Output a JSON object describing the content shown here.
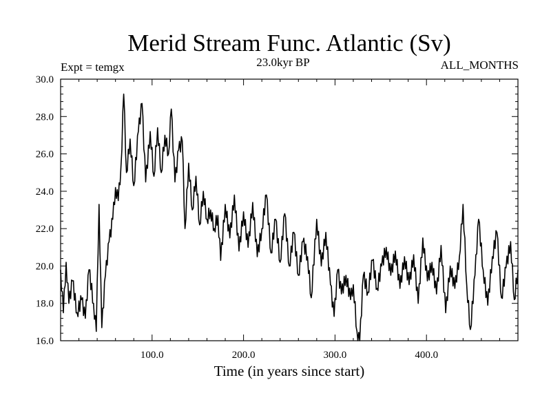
{
  "chart_data": {
    "type": "line",
    "title": "Merid Stream Func. Atlantic (Sv)",
    "subtitle_left": "Expt = temgx",
    "subtitle_center": "23.0kyr BP",
    "subtitle_right": "ALL_MONTHS",
    "xlabel": "Time (in years since start)",
    "ylabel": "",
    "xlim": [
      0,
      500
    ],
    "ylim": [
      16.0,
      30.0
    ],
    "x_ticks": [
      100,
      200,
      300,
      400
    ],
    "x_tick_labels": [
      "100.0",
      "200.0",
      "300.0",
      "400.0"
    ],
    "y_ticks": [
      16,
      18,
      20,
      22,
      24,
      26,
      28,
      30
    ],
    "y_tick_labels": [
      "16.0",
      "18.0",
      "20.0",
      "22.0",
      "24.0",
      "26.0",
      "28.0",
      "30.0"
    ],
    "grid": false,
    "line_color": "#000000",
    "anchors": [
      [
        0,
        19.8
      ],
      [
        3,
        17.5
      ],
      [
        6,
        20.2
      ],
      [
        9,
        18.0
      ],
      [
        13,
        19.2
      ],
      [
        18,
        17.5
      ],
      [
        23,
        18.2
      ],
      [
        27,
        17.2
      ],
      [
        31,
        19.8
      ],
      [
        36,
        18.0
      ],
      [
        39,
        16.5
      ],
      [
        42,
        23.3
      ],
      [
        45,
        16.7
      ],
      [
        49,
        19.5
      ],
      [
        53,
        21.3
      ],
      [
        57,
        22.5
      ],
      [
        60,
        24.2
      ],
      [
        63,
        23.5
      ],
      [
        66,
        25.3
      ],
      [
        69,
        29.2
      ],
      [
        72,
        25.0
      ],
      [
        76,
        26.8
      ],
      [
        80,
        24.3
      ],
      [
        85,
        27.2
      ],
      [
        89,
        28.7
      ],
      [
        93,
        24.5
      ],
      [
        98,
        27.2
      ],
      [
        102,
        24.8
      ],
      [
        106,
        27.4
      ],
      [
        110,
        25.0
      ],
      [
        114,
        27.0
      ],
      [
        118,
        26.0
      ],
      [
        121,
        28.4
      ],
      [
        125,
        24.5
      ],
      [
        129,
        26.2
      ],
      [
        133,
        26.7
      ],
      [
        136,
        22.0
      ],
      [
        140,
        25.5
      ],
      [
        144,
        23.0
      ],
      [
        148,
        24.8
      ],
      [
        152,
        22.2
      ],
      [
        156,
        24.0
      ],
      [
        160,
        22.5
      ],
      [
        164,
        23.0
      ],
      [
        168,
        22.0
      ],
      [
        172,
        22.7
      ],
      [
        175,
        20.3
      ],
      [
        180,
        23.3
      ],
      [
        185,
        21.5
      ],
      [
        190,
        23.8
      ],
      [
        195,
        20.8
      ],
      [
        200,
        22.9
      ],
      [
        205,
        21.0
      ],
      [
        210,
        23.4
      ],
      [
        215,
        20.5
      ],
      [
        220,
        22.0
      ],
      [
        225,
        23.8
      ],
      [
        230,
        20.7
      ],
      [
        235,
        22.5
      ],
      [
        240,
        20.2
      ],
      [
        245,
        22.8
      ],
      [
        250,
        20.0
      ],
      [
        255,
        21.8
      ],
      [
        260,
        19.5
      ],
      [
        265,
        21.3
      ],
      [
        270,
        20.5
      ],
      [
        274,
        18.3
      ],
      [
        280,
        22.5
      ],
      [
        285,
        20.0
      ],
      [
        290,
        21.8
      ],
      [
        295,
        19.0
      ],
      [
        299,
        17.3
      ],
      [
        303,
        19.8
      ],
      [
        307,
        18.5
      ],
      [
        312,
        19.5
      ],
      [
        317,
        18.2
      ],
      [
        320,
        19.0
      ],
      [
        324,
        16.5
      ],
      [
        327,
        15.9
      ],
      [
        331,
        19.5
      ],
      [
        336,
        18.6
      ],
      [
        341,
        20.3
      ],
      [
        346,
        18.8
      ],
      [
        351,
        20.0
      ],
      [
        356,
        21.0
      ],
      [
        361,
        19.5
      ],
      [
        366,
        20.8
      ],
      [
        371,
        18.8
      ],
      [
        376,
        20.5
      ],
      [
        381,
        19.0
      ],
      [
        386,
        20.6
      ],
      [
        391,
        18.0
      ],
      [
        396,
        21.5
      ],
      [
        401,
        19.2
      ],
      [
        406,
        20.2
      ],
      [
        411,
        18.5
      ],
      [
        416,
        21.1
      ],
      [
        421,
        17.5
      ],
      [
        426,
        20.0
      ],
      [
        431,
        18.8
      ],
      [
        436,
        20.5
      ],
      [
        440,
        23.3
      ],
      [
        444,
        19.0
      ],
      [
        448,
        16.6
      ],
      [
        453,
        19.5
      ],
      [
        457,
        22.5
      ],
      [
        462,
        19.8
      ],
      [
        467,
        17.9
      ],
      [
        472,
        20.5
      ],
      [
        477,
        21.8
      ],
      [
        482,
        18.3
      ],
      [
        487,
        19.9
      ],
      [
        492,
        21.3
      ],
      [
        496,
        18.2
      ],
      [
        500,
        19.8
      ]
    ]
  }
}
